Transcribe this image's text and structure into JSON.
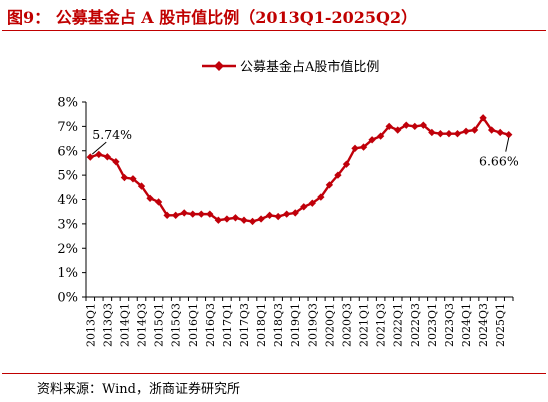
{
  "figure": {
    "title": "图9：  公募基金占 A 股市值比例（2013Q1-2025Q2）",
    "source": "资料来源：Wind，浙商证券研究所"
  },
  "colors": {
    "accent": "#c00000",
    "line": "#c0000a",
    "axis": "#000000"
  },
  "chart_data": {
    "type": "line",
    "title": "",
    "xlabel": "",
    "ylabel": "",
    "ylim": [
      0,
      8
    ],
    "yticks": [
      "0%",
      "1%",
      "2%",
      "3%",
      "4%",
      "5%",
      "6%",
      "7%",
      "8%"
    ],
    "grid": false,
    "legend_position": "top-center",
    "x_tick_labels": [
      "2013Q1",
      "2013Q3",
      "2014Q1",
      "2014Q3",
      "2015Q1",
      "2015Q3",
      "2016Q1",
      "2016Q3",
      "2017Q1",
      "2017Q3",
      "2018Q1",
      "2018Q3",
      "2019Q1",
      "2019Q3",
      "2020Q1",
      "2020Q3",
      "2021Q1",
      "2021Q3",
      "2022Q1",
      "2022Q3",
      "2023Q1",
      "2023Q3",
      "2024Q1",
      "2024Q3",
      "2025Q1"
    ],
    "categories": [
      "2013Q1",
      "2013Q2",
      "2013Q3",
      "2013Q4",
      "2014Q1",
      "2014Q2",
      "2014Q3",
      "2014Q4",
      "2015Q1",
      "2015Q2",
      "2015Q3",
      "2015Q4",
      "2016Q1",
      "2016Q2",
      "2016Q3",
      "2016Q4",
      "2017Q1",
      "2017Q2",
      "2017Q3",
      "2017Q4",
      "2018Q1",
      "2018Q2",
      "2018Q3",
      "2018Q4",
      "2019Q1",
      "2019Q2",
      "2019Q3",
      "2019Q4",
      "2020Q1",
      "2020Q2",
      "2020Q3",
      "2020Q4",
      "2021Q1",
      "2021Q2",
      "2021Q3",
      "2021Q4",
      "2022Q1",
      "2022Q2",
      "2022Q3",
      "2022Q4",
      "2023Q1",
      "2023Q2",
      "2023Q3",
      "2023Q4",
      "2024Q1",
      "2024Q2",
      "2024Q3",
      "2024Q4",
      "2025Q1",
      "2025Q2"
    ],
    "series": [
      {
        "name": "公募基金占A股市值比例",
        "values": [
          5.74,
          5.85,
          5.75,
          5.55,
          4.9,
          4.85,
          4.55,
          4.05,
          3.9,
          3.35,
          3.35,
          3.45,
          3.4,
          3.4,
          3.4,
          3.15,
          3.2,
          3.25,
          3.15,
          3.1,
          3.2,
          3.35,
          3.3,
          3.4,
          3.45,
          3.7,
          3.85,
          4.1,
          4.6,
          5.0,
          5.45,
          6.1,
          6.15,
          6.45,
          6.6,
          7.0,
          6.85,
          7.05,
          7.0,
          7.05,
          6.75,
          6.7,
          6.7,
          6.7,
          6.8,
          6.85,
          7.35,
          6.85,
          6.75,
          6.66
        ]
      }
    ],
    "annotations": [
      {
        "label": "5.74%",
        "category": "2013Q1",
        "value": 5.74
      },
      {
        "label": "6.66%",
        "category": "2025Q2",
        "value": 6.66
      }
    ]
  }
}
